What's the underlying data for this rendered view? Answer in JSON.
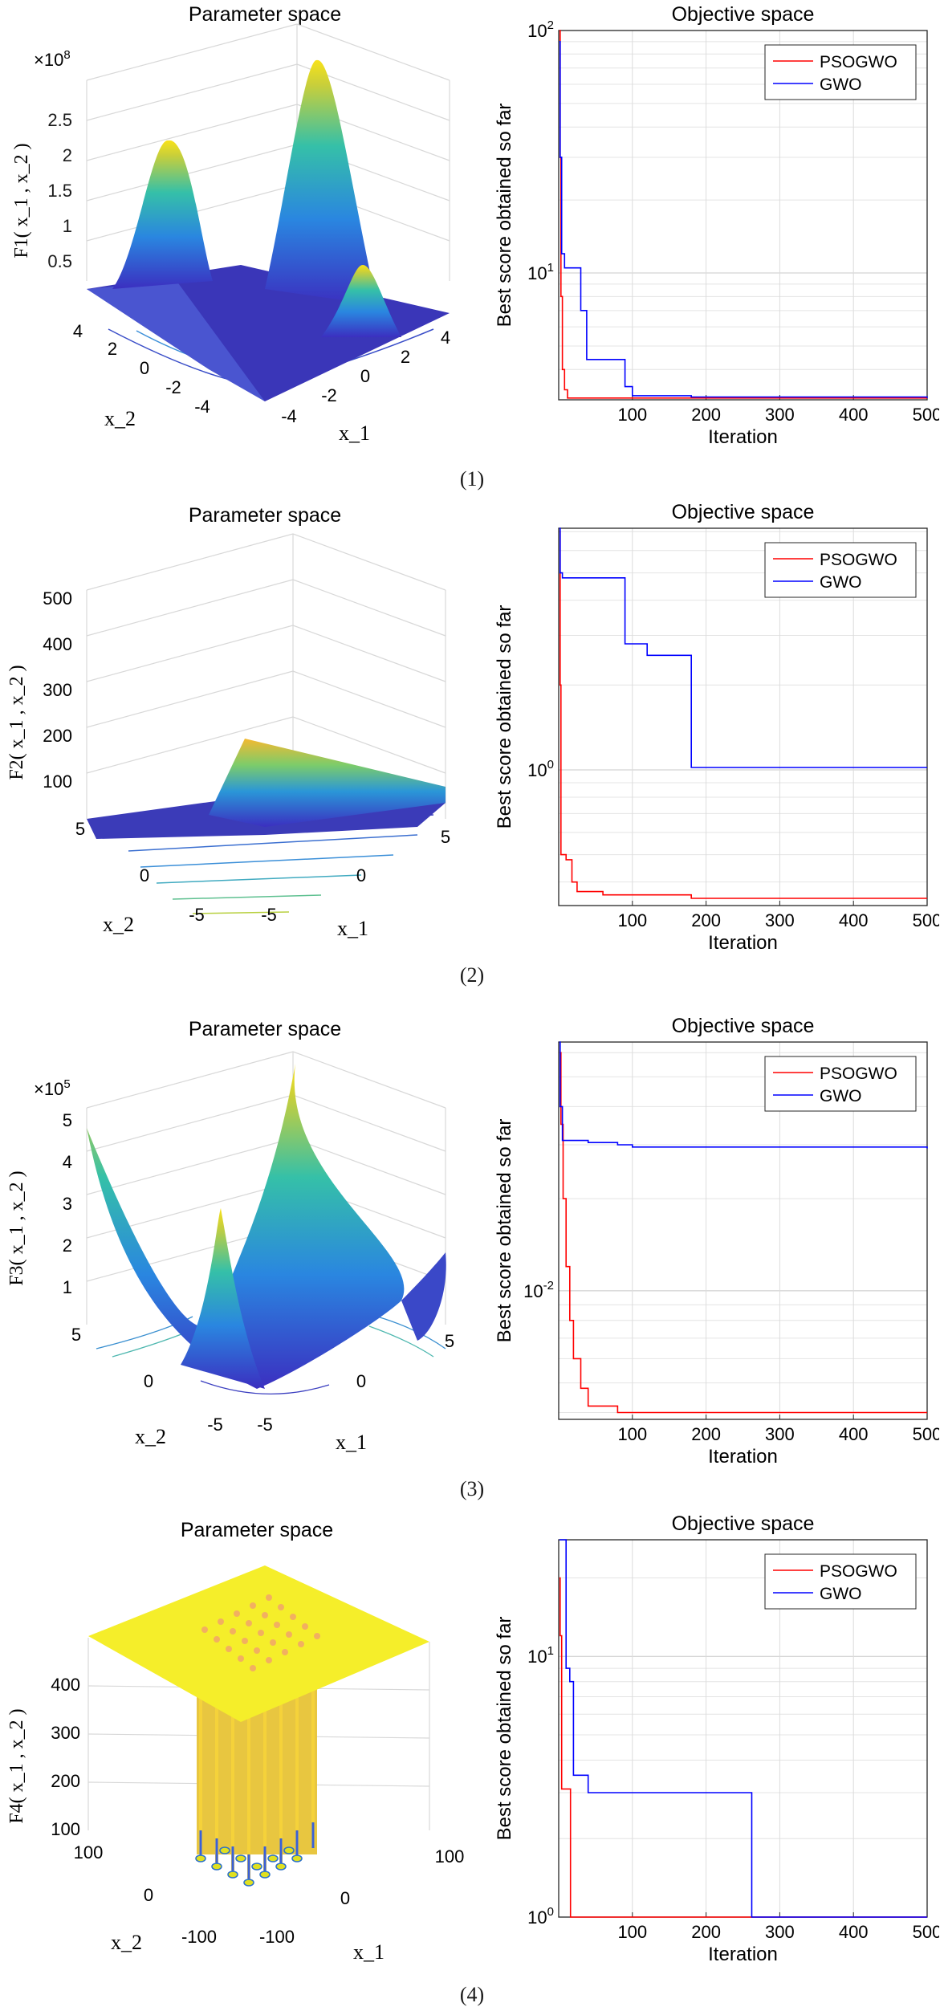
{
  "chart_data": [
    {
      "type": "surface",
      "title": "Parameter space",
      "zlabel": "F1( x_1 , x_2 )",
      "xlabel": "x_1",
      "ylabel": "x_2",
      "exponent": "×10",
      "exponent_power": "8",
      "z_ticks": [
        "0.5",
        "1",
        "1.5",
        "2",
        "2.5"
      ],
      "x_ticks": [
        "-4",
        "-2",
        "0",
        "2",
        "4"
      ],
      "y_ticks": [
        "4",
        "2",
        "0",
        "-2",
        "-4"
      ],
      "caption": "(1)"
    },
    {
      "type": "line",
      "title": "Objective space",
      "xlabel": "Iteration",
      "ylabel": "Best score obtained so far",
      "y_scale": "log",
      "xlim": [
        0,
        500
      ],
      "ylim": [
        3,
        100
      ],
      "x_ticks": [
        "100",
        "200",
        "300",
        "400",
        "500"
      ],
      "y_ticks": [
        {
          "value": 10,
          "label": "10",
          "exp": "1"
        },
        {
          "value": 100,
          "label": "10",
          "exp": "2"
        }
      ],
      "grid": true,
      "legend_position": "top-right",
      "series": [
        {
          "name": "PSOGWO",
          "color": "#ff0000",
          "x": [
            1,
            2,
            3,
            5,
            8,
            12,
            500
          ],
          "y": [
            100,
            30,
            8,
            4,
            3.3,
            3.05,
            3.05
          ]
        },
        {
          "name": "GWO",
          "color": "#0000ff",
          "x": [
            1,
            2,
            4,
            8,
            25,
            30,
            38,
            90,
            100,
            180,
            500
          ],
          "y": [
            90,
            30,
            12,
            10.5,
            10.5,
            7,
            4.4,
            3.4,
            3.12,
            3.08,
            3.05
          ]
        }
      ]
    },
    {
      "type": "surface",
      "title": "Parameter space",
      "zlabel": "F2( x_1 , x_2 )",
      "xlabel": "x_1",
      "ylabel": "x_2",
      "z_ticks": [
        "100",
        "200",
        "300",
        "400",
        "500"
      ],
      "x_ticks": [
        "-5",
        "0",
        "5"
      ],
      "y_ticks": [
        "5",
        "0",
        "-5"
      ],
      "caption": "(2)"
    },
    {
      "type": "line",
      "title": "Objective space",
      "xlabel": "Iteration",
      "ylabel": "Best score obtained so far",
      "y_scale": "log",
      "xlim": [
        0,
        500
      ],
      "ylim": [
        0.33,
        7.2
      ],
      "x_ticks": [
        "100",
        "200",
        "300",
        "400",
        "500"
      ],
      "y_ticks": [
        {
          "value": 1,
          "label": "10",
          "exp": "0"
        }
      ],
      "grid": true,
      "legend_position": "top-right",
      "series": [
        {
          "name": "PSOGWO",
          "color": "#ff0000",
          "x": [
            1,
            2,
            3,
            10,
            18,
            25,
            60,
            180,
            500
          ],
          "y": [
            7,
            2,
            0.5,
            0.48,
            0.4,
            0.37,
            0.36,
            0.35,
            0.35
          ]
        },
        {
          "name": "GWO",
          "color": "#0000ff",
          "x": [
            1,
            2,
            5,
            90,
            120,
            175,
            180,
            500
          ],
          "y": [
            7.2,
            5,
            4.8,
            2.8,
            2.55,
            2.55,
            1.02,
            1.02
          ]
        }
      ]
    },
    {
      "type": "surface",
      "title": "Parameter space",
      "zlabel": "F3( x_1 , x_2 )",
      "xlabel": "x_1",
      "ylabel": "x_2",
      "exponent": "×10",
      "exponent_power": "5",
      "z_ticks": [
        "1",
        "2",
        "3",
        "4",
        "5"
      ],
      "x_ticks": [
        "-5",
        "0",
        "5"
      ],
      "y_ticks": [
        "5",
        "0",
        "-5"
      ],
      "caption": "(3)"
    },
    {
      "type": "line",
      "title": "Objective space",
      "xlabel": "Iteration",
      "ylabel": "Best score obtained so far",
      "y_scale": "log",
      "xlim": [
        0,
        500
      ],
      "ylim": [
        0.0038,
        0.065
      ],
      "x_ticks": [
        "100",
        "200",
        "300",
        "400",
        "500"
      ],
      "y_ticks": [
        {
          "value": 0.01,
          "label": "10",
          "exp": "-2"
        }
      ],
      "grid": true,
      "legend_position": "top-right",
      "series": [
        {
          "name": "PSOGWO",
          "color": "#ff0000",
          "x": [
            1,
            3,
            6,
            10,
            15,
            20,
            30,
            40,
            80,
            500
          ],
          "y": [
            0.06,
            0.035,
            0.02,
            0.012,
            0.008,
            0.006,
            0.0048,
            0.0042,
            0.004,
            0.004
          ]
        },
        {
          "name": "GWO",
          "color": "#0000ff",
          "x": [
            1,
            2,
            5,
            40,
            80,
            100,
            500
          ],
          "y": [
            0.065,
            0.04,
            0.031,
            0.0305,
            0.03,
            0.0295,
            0.0292
          ]
        }
      ]
    },
    {
      "type": "surface",
      "title": "Parameter space",
      "zlabel": "F4( x_1 , x_2 )",
      "xlabel": "x_1",
      "ylabel": "x_2",
      "z_ticks": [
        "100",
        "200",
        "300",
        "400"
      ],
      "x_ticks": [
        "-100",
        "0",
        "100"
      ],
      "y_ticks": [
        "100",
        "0",
        "-100"
      ],
      "caption": "(4)"
    },
    {
      "type": "line",
      "title": "Objective space",
      "xlabel": "Iteration",
      "ylabel": "Best score obtained so far",
      "y_scale": "log",
      "xlim": [
        0,
        500
      ],
      "ylim": [
        1,
        28
      ],
      "x_ticks": [
        "100",
        "200",
        "300",
        "400",
        "500"
      ],
      "y_ticks": [
        {
          "value": 1,
          "label": "10",
          "exp": "0"
        },
        {
          "value": 10,
          "label": "10",
          "exp": "1"
        }
      ],
      "grid": true,
      "legend_position": "top-right",
      "series": [
        {
          "name": "PSOGWO",
          "color": "#ff0000",
          "x": [
            1,
            2,
            4,
            15,
            16,
            500
          ],
          "y": [
            20,
            12,
            3.1,
            3.1,
            1.0,
            1.0
          ]
        },
        {
          "name": "GWO",
          "color": "#0000ff",
          "x": [
            1,
            8,
            10,
            15,
            20,
            30,
            40,
            260,
            262,
            500
          ],
          "y": [
            28,
            28,
            9,
            8,
            3.5,
            3.5,
            3.0,
            3.0,
            1.0,
            1.0
          ]
        }
      ]
    }
  ]
}
